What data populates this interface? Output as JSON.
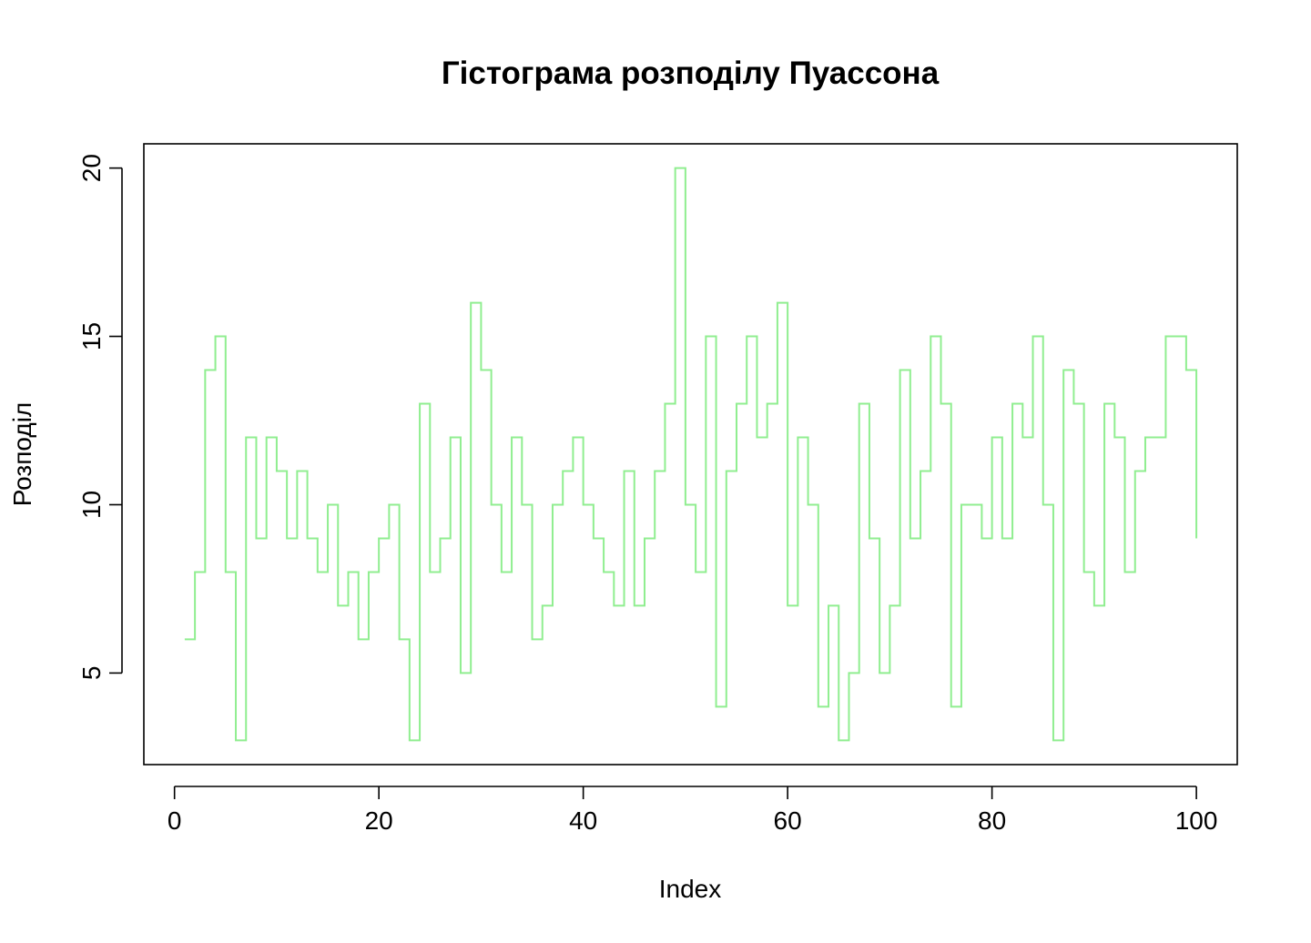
{
  "chart_data": {
    "type": "line",
    "line_style": "steps",
    "title": "Гістограма розподілу Пуассона",
    "xlabel": "Index",
    "ylabel": "Розподіл",
    "xlim": [
      -3,
      104
    ],
    "ylim": [
      2.28,
      20.72
    ],
    "x_ticks": [
      0,
      20,
      40,
      60,
      80,
      100
    ],
    "y_ticks": [
      5,
      10,
      15,
      20
    ],
    "grid": false,
    "legend": "none",
    "series_color": "#90EE90",
    "series": [
      {
        "x": [
          1,
          2,
          3,
          4,
          5,
          6,
          7,
          8,
          9,
          10,
          11,
          12,
          13,
          14,
          15,
          16,
          17,
          18,
          19,
          20,
          21,
          22,
          23,
          24,
          25,
          26,
          27,
          28,
          29,
          30,
          31,
          32,
          33,
          34,
          35,
          36,
          37,
          38,
          39,
          40,
          41,
          42,
          43,
          44,
          45,
          46,
          47,
          48,
          49,
          50,
          51,
          52,
          53,
          54,
          55,
          56,
          57,
          58,
          59,
          60,
          61,
          62,
          63,
          64,
          65,
          66,
          67,
          68,
          69,
          70,
          71,
          72,
          73,
          74,
          75,
          76,
          77,
          78,
          79,
          80,
          81,
          82,
          83,
          84,
          85,
          86,
          87,
          88,
          89,
          90,
          91,
          92,
          93,
          94,
          95,
          96,
          97,
          98,
          99,
          100
        ],
        "values": [
          6,
          8,
          14,
          15,
          8,
          3,
          12,
          9,
          12,
          11,
          9,
          11,
          9,
          8,
          10,
          7,
          8,
          6,
          8,
          9,
          10,
          6,
          3,
          13,
          8,
          9,
          12,
          5,
          16,
          14,
          10,
          8,
          12,
          10,
          6,
          7,
          10,
          11,
          12,
          10,
          9,
          8,
          7,
          11,
          7,
          9,
          11,
          13,
          20,
          10,
          8,
          15,
          4,
          11,
          13,
          15,
          12,
          13,
          16,
          7,
          12,
          10,
          4,
          7,
          3,
          5,
          13,
          9,
          5,
          7,
          14,
          9,
          11,
          15,
          13,
          4,
          10,
          10,
          9,
          12,
          9,
          13,
          12,
          15,
          10,
          3,
          14,
          13,
          8,
          7,
          13,
          12,
          8,
          11,
          12,
          12,
          15,
          15,
          14,
          9
        ]
      }
    ]
  }
}
